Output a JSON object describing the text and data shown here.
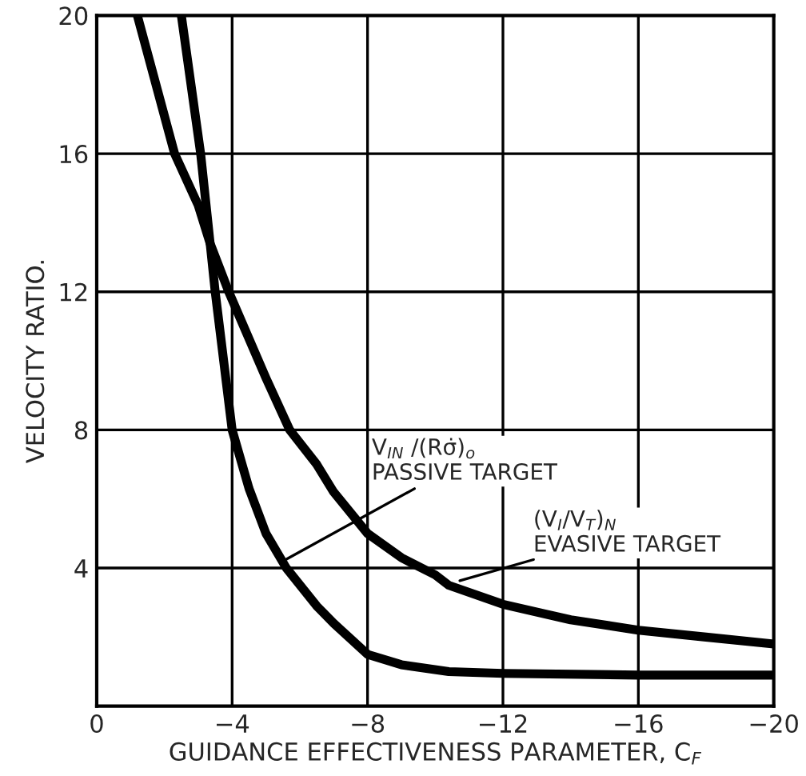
{
  "chart_data": {
    "type": "line",
    "xlabel": "GUIDANCE EFFECTIVENESS PARAMETER, C$_{F}$",
    "ylabel": "VELOCITY RATIO.",
    "xlim": [
      0,
      -20
    ],
    "xticks": [
      0,
      {
        "value": -4,
        "label": "−4"
      },
      {
        "value": -8,
        "label": "−8"
      },
      {
        "value": -12,
        "label": "−12"
      },
      {
        "value": -16,
        "label": "−16"
      },
      {
        "value": -20,
        "label": "−20"
      }
    ],
    "ylim": [
      0,
      20
    ],
    "yticks": [
      4,
      8,
      12,
      16,
      20
    ],
    "grid": true,
    "series": [
      {
        "color": "#000000",
        "x": [
          -2.5,
          -3.07,
          -3.35,
          -3.5,
          -4.0,
          -4.5,
          -5.0,
          -5.6,
          -6.5,
          -7.0,
          -8.0,
          -9.0,
          -10.4,
          -12.0,
          -16.0,
          -20.0
        ],
        "values": [
          20,
          16,
          13.4,
          12,
          8,
          6.3,
          5.0,
          4,
          2.9,
          2.4,
          1.5,
          1.2,
          1.0,
          0.95,
          0.9,
          0.9
        ]
      },
      {
        "color": "#000000",
        "x": [
          -1.2,
          -2.3,
          -3.0,
          -3.35,
          -3.9,
          -5.0,
          -5.7,
          -6.5,
          -7.0,
          -8.0,
          -9.0,
          -10.0,
          -10.4,
          -12.0,
          -14.0,
          -16.0,
          -18.0,
          -20.0
        ],
        "values": [
          20,
          16,
          14.5,
          13.4,
          12,
          9.5,
          8,
          7,
          6.2,
          5.0,
          4.3,
          3.8,
          3.5,
          2.95,
          2.5,
          2.2,
          2.0,
          1.8
        ]
      }
    ],
    "annotations": [
      {
        "text": "V$_{IN}$ /(Rσ̇)$_{o}$\nPASSIVE TARGET",
        "x": -5.5,
        "y": 4.2
      },
      {
        "text": "(V$_{I}$/V$_{T}$)$_{N}$\nEVASIVE TARGET",
        "x": -10.6,
        "y": 3.6
      }
    ]
  }
}
